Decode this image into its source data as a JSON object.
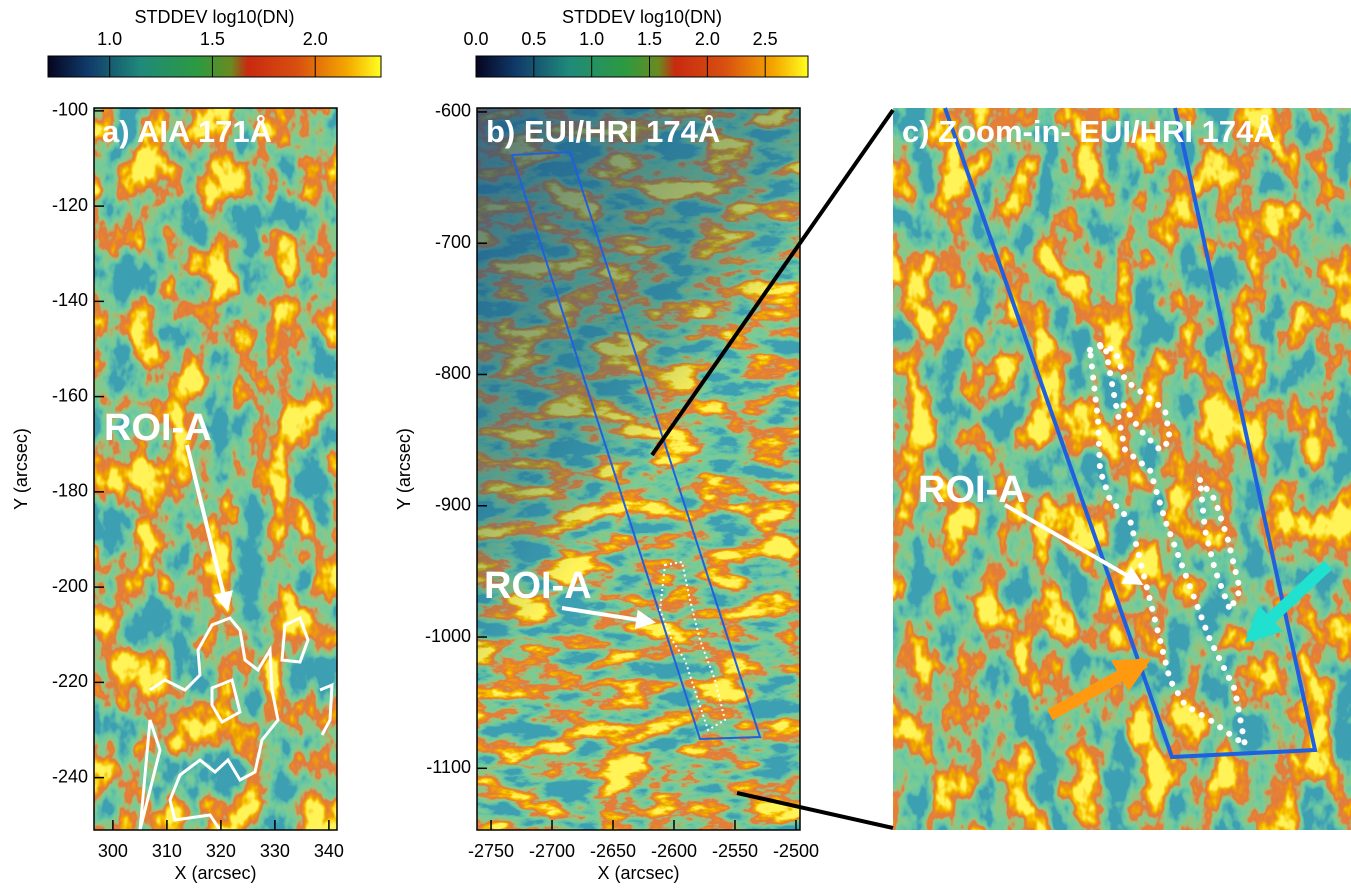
{
  "chart_data": [
    {
      "type": "image",
      "title": "a) AIA 171Å",
      "xlabel": "X (arcsec)",
      "ylabel": "Y (arcsec)",
      "xlim": [
        296.5,
        341.5
      ],
      "ylim": [
        -251,
        -99.4
      ],
      "xticks": [
        300,
        310,
        320,
        330,
        340
      ],
      "yticks": [
        -100,
        -120,
        -140,
        -160,
        -180,
        -200,
        -220,
        -240
      ],
      "annotations": [
        "ROI-A"
      ],
      "colorbar": {
        "label": "STDDEV log10(DN)",
        "clim": [
          0.7,
          2.32
        ],
        "ticks": [
          {
            "value": 1,
            "label": "1.0"
          },
          {
            "value": 1.5,
            "label": "1.5"
          },
          {
            "value": 2,
            "label": "2.0"
          }
        ]
      }
    },
    {
      "type": "image",
      "title": "b) EUI/HRI 174Å",
      "xlabel": "X (arcsec)",
      "ylabel": "Y (arcsec)",
      "xlim": [
        -2761.5,
        -2496.7
      ],
      "ylim": [
        -1147,
        -597
      ],
      "xticks": [
        -2750,
        -2700,
        -2650,
        -2600,
        -2550,
        -2500
      ],
      "yticks": [
        -600,
        -700,
        -800,
        -900,
        -1000,
        -1100
      ],
      "annotations": [
        "ROI-A"
      ],
      "colorbar": {
        "label": "STDDEV log10(DN)",
        "clim": [
          0,
          2.87
        ],
        "ticks": [
          {
            "value": 0,
            "label": "0.0"
          },
          {
            "value": 0.5,
            "label": "0.5"
          },
          {
            "value": 1,
            "label": "1.0"
          },
          {
            "value": 1.5,
            "label": "1.5"
          },
          {
            "value": 2,
            "label": "2.0"
          },
          {
            "value": 2.5,
            "label": "2.5"
          }
        ]
      }
    },
    {
      "type": "image",
      "title": "c) Zoom-in- EUI/HRI 174Å",
      "annotations": [
        "ROI-A"
      ]
    }
  ]
}
